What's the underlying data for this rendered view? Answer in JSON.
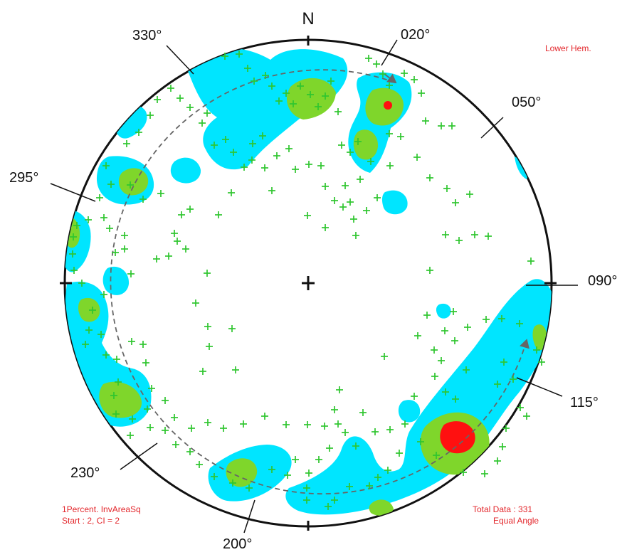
{
  "north_label": "N",
  "hemisphere_label": "Lower Hem.",
  "contour_info": {
    "line1": "1Percent. InvAreaSq",
    "line2": "Start : 2, CI = 2"
  },
  "summary": {
    "total_data": "Total Data : 331",
    "projection": "Equal Angle"
  },
  "strike_labels": [
    "330°",
    "020°",
    "050°",
    "295°",
    "090°",
    "115°",
    "230°",
    "200°"
  ],
  "colors": {
    "contour_low": "#00e5ff",
    "contour_mid": "#7fd62b",
    "contour_high": "#ff1010",
    "pole_marker": "#2fc62f",
    "annotation_text": "#e3262b",
    "circle": "#111111",
    "dashed_arc": "#666666"
  },
  "icons": {
    "pole": "plus-marker",
    "center": "center-cross"
  }
}
